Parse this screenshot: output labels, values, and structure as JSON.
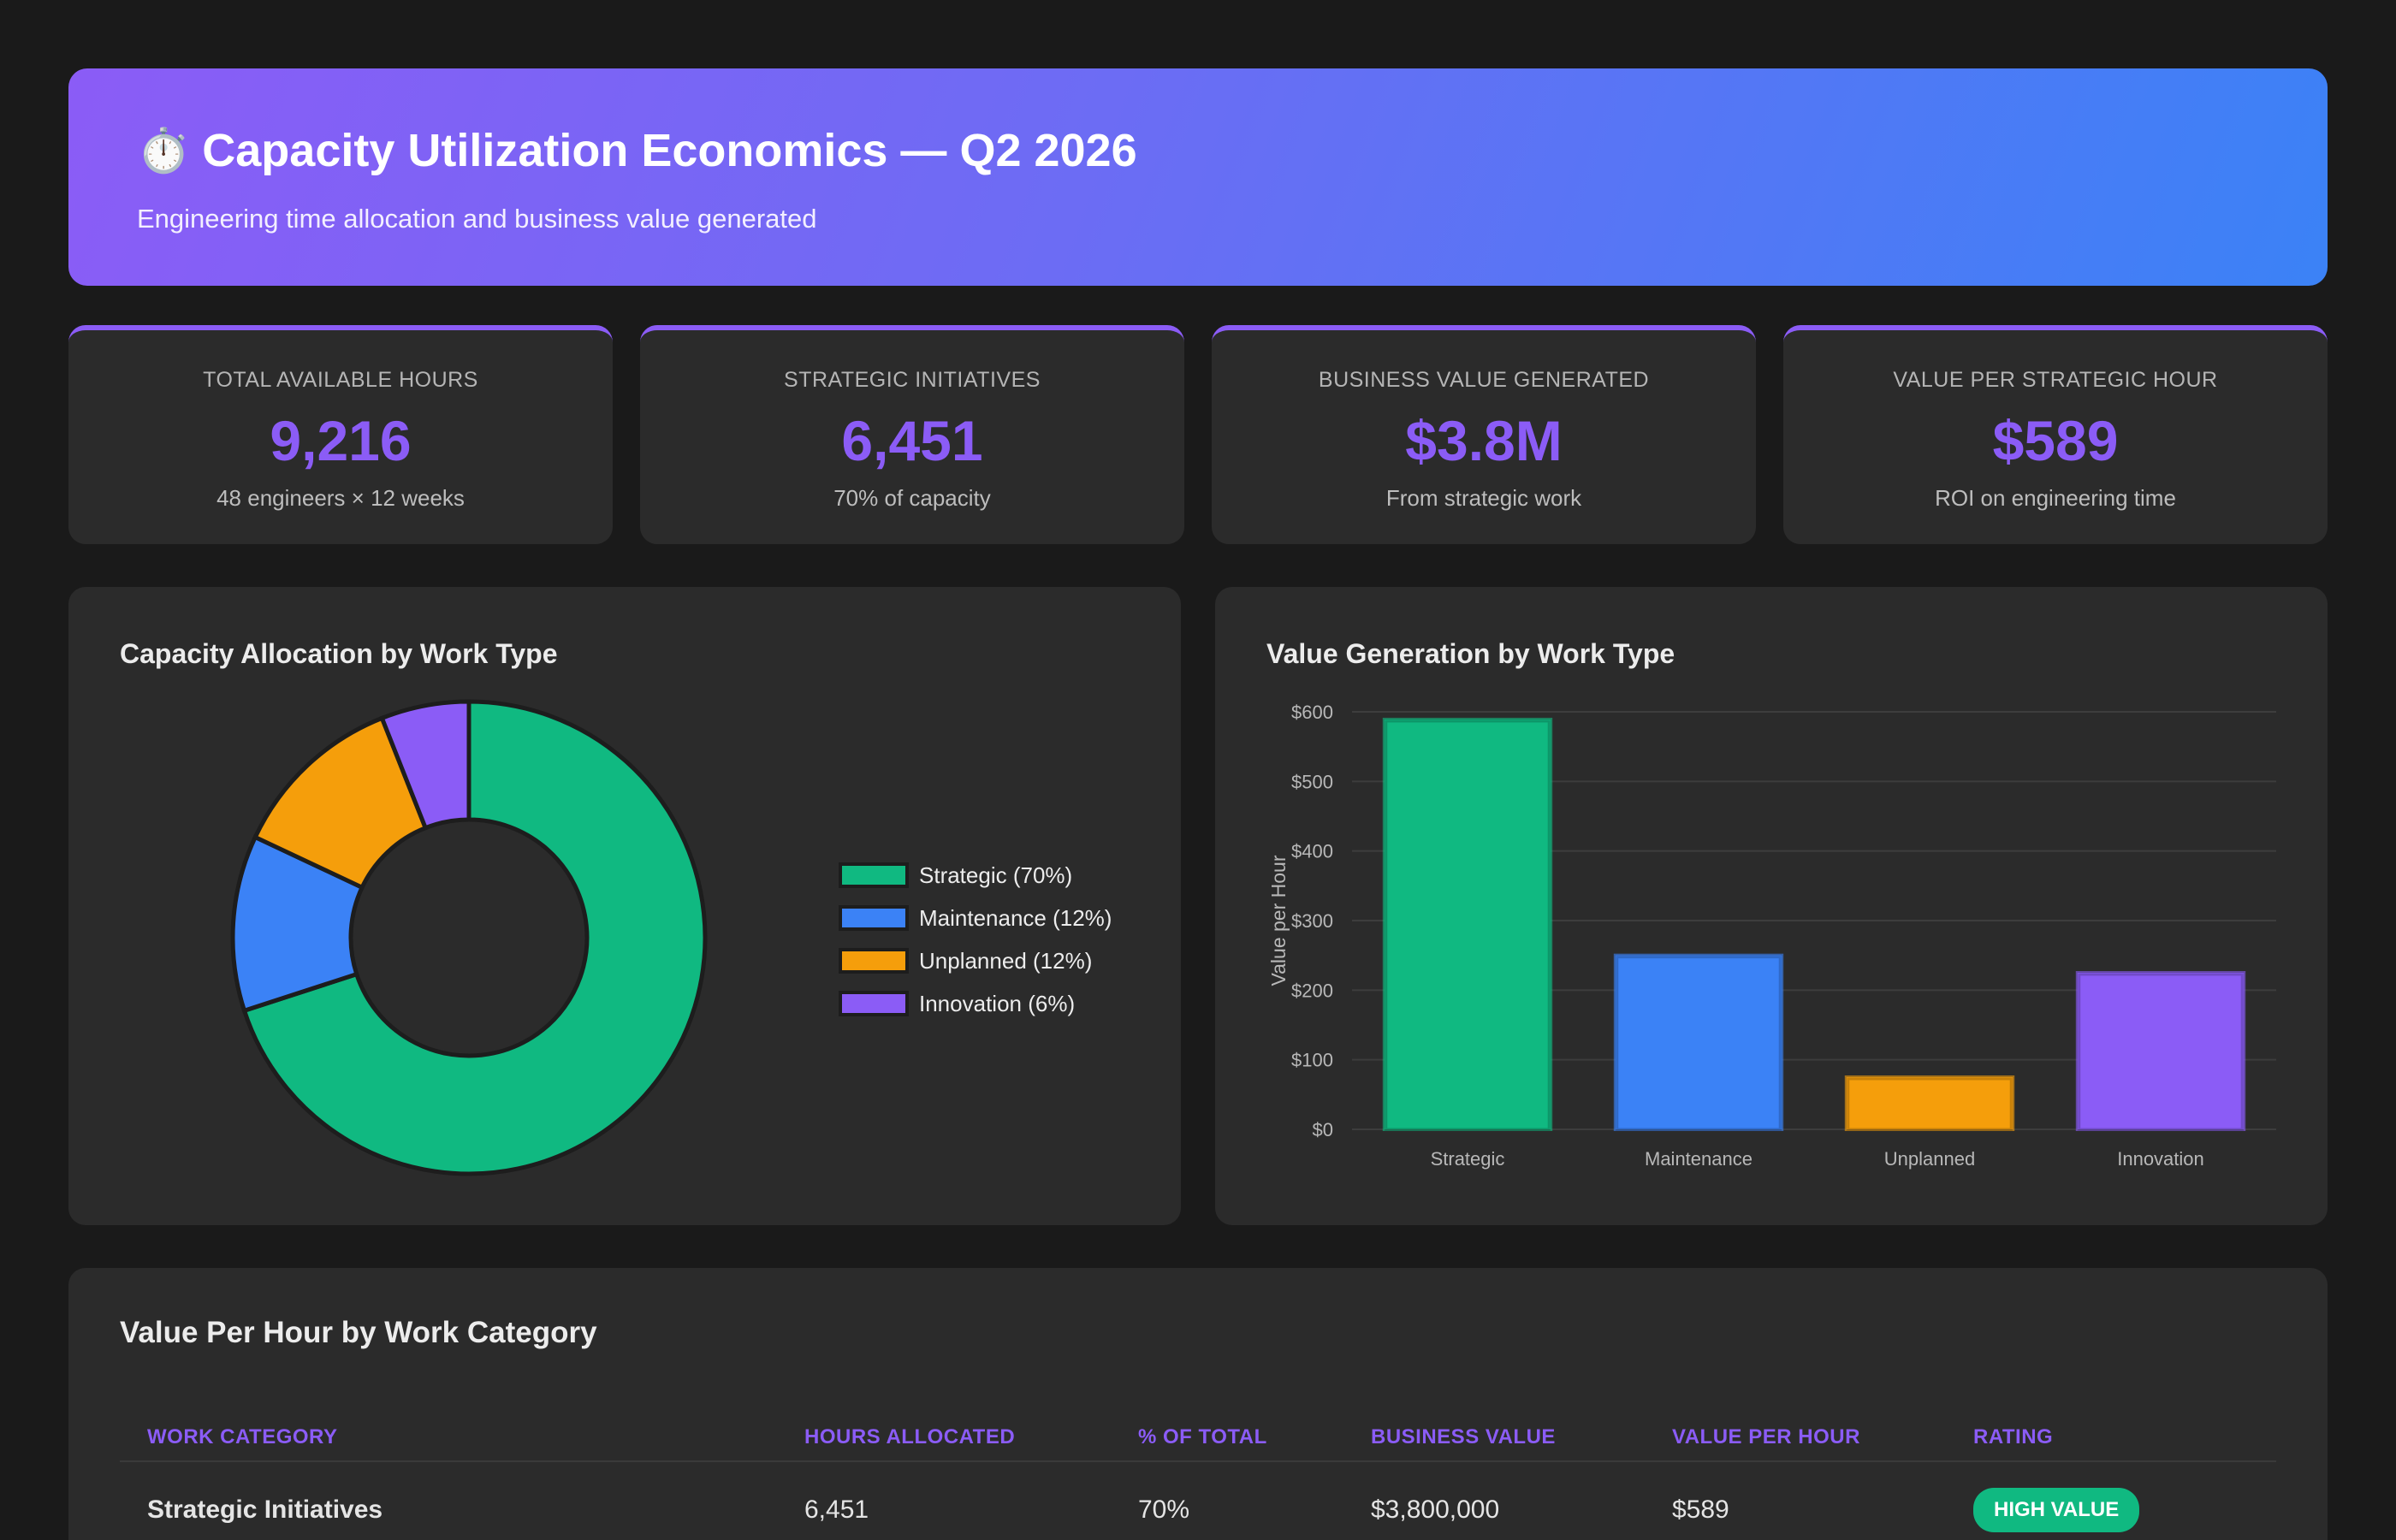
{
  "header": {
    "icon": "stopwatch-icon",
    "title": "Capacity Utilization Economics — Q2 2026",
    "subtitle": "Engineering time allocation and business value generated"
  },
  "kpis": [
    {
      "label": "TOTAL AVAILABLE HOURS",
      "value": "9,216",
      "sub": "48 engineers × 12 weeks"
    },
    {
      "label": "STRATEGIC INITIATIVES",
      "value": "6,451",
      "sub": "70% of capacity"
    },
    {
      "label": "BUSINESS VALUE GENERATED",
      "value": "$3.8M",
      "sub": "From strategic work"
    },
    {
      "label": "VALUE PER STRATEGIC HOUR",
      "value": "$589",
      "sub": "ROI on engineering time"
    }
  ],
  "colors": {
    "accent": "#8b5cf6",
    "strategic": "#10b981",
    "maintenance": "#3b82f6",
    "unplanned": "#f59e0b",
    "innovation": "#8b5cf6"
  },
  "chart_data": [
    {
      "type": "pie",
      "title": "Capacity Allocation by Work Type",
      "labels": [
        "Strategic (70%)",
        "Maintenance (12%)",
        "Unplanned (12%)",
        "Innovation (6%)"
      ],
      "values": [
        70,
        12,
        12,
        6
      ],
      "colors": [
        "#10b981",
        "#3b82f6",
        "#f59e0b",
        "#8b5cf6"
      ],
      "legend": "right"
    },
    {
      "type": "bar",
      "title": "Value Generation by Work Type",
      "categories": [
        "Strategic",
        "Maintenance",
        "Unplanned",
        "Innovation"
      ],
      "values": [
        589,
        250,
        75,
        225
      ],
      "colors": [
        "#10b981",
        "#3b82f6",
        "#f59e0b",
        "#8b5cf6"
      ],
      "ylabel": "Value per Hour",
      "ylim": [
        0,
        600
      ],
      "yticks": [
        0,
        100,
        200,
        300,
        400,
        500,
        600
      ],
      "ytick_labels": [
        "$0",
        "$100",
        "$200",
        "$300",
        "$400",
        "$500",
        "$600"
      ],
      "grid": true
    }
  ],
  "table": {
    "title": "Value Per Hour by Work Category",
    "headers": [
      "WORK CATEGORY",
      "HOURS ALLOCATED",
      "% OF TOTAL",
      "BUSINESS VALUE",
      "VALUE PER HOUR",
      "RATING"
    ],
    "rows": [
      {
        "category": "Strategic Initiatives",
        "hours": "6,451",
        "pct": "70%",
        "value": "$3,800,000",
        "vph": "$589",
        "rating": "HIGH VALUE",
        "rating_color": "#10b981"
      }
    ]
  }
}
